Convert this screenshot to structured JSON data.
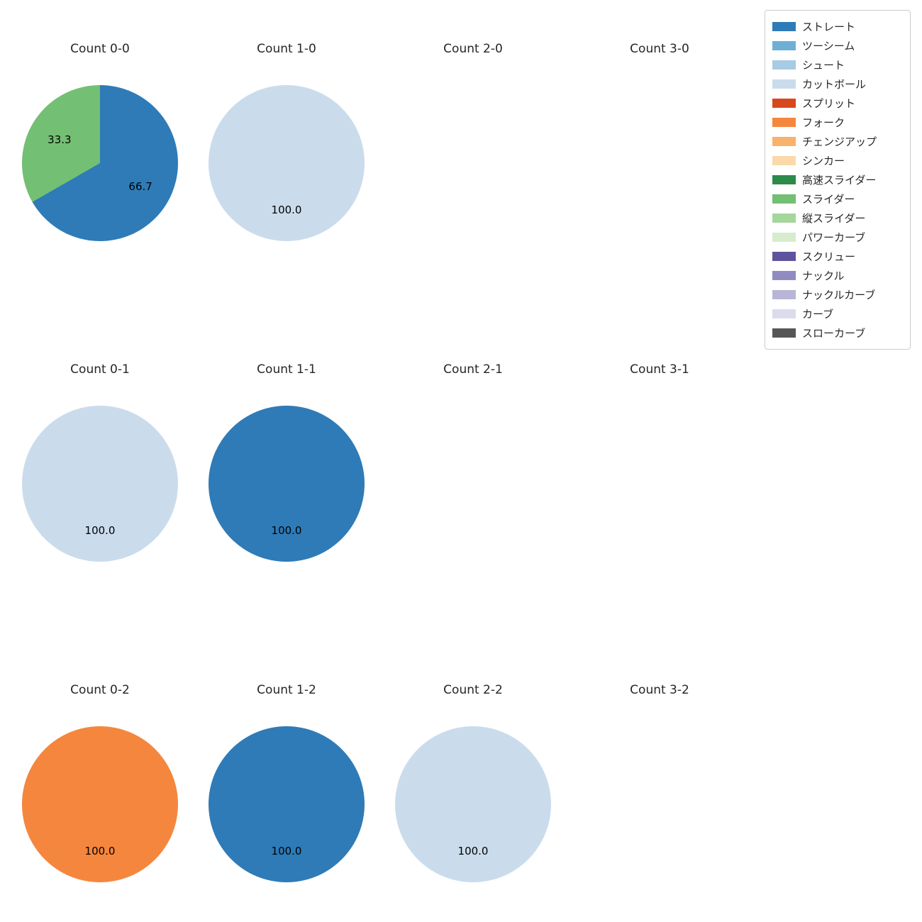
{
  "legend": {
    "items": [
      {
        "label": "ストレート",
        "color": "#2e7bb8"
      },
      {
        "label": "ツーシーム",
        "color": "#6fafd4"
      },
      {
        "label": "シュート",
        "color": "#a6cbe3"
      },
      {
        "label": "カットボール",
        "color": "#cadcec"
      },
      {
        "label": "スプリット",
        "color": "#d7481d"
      },
      {
        "label": "フォーク",
        "color": "#f5863d"
      },
      {
        "label": "チェンジアップ",
        "color": "#f9b26c"
      },
      {
        "label": "シンカー",
        "color": "#fbd9a8"
      },
      {
        "label": "高速スライダー",
        "color": "#2c8a4b"
      },
      {
        "label": "スライダー",
        "color": "#73bf73"
      },
      {
        "label": "縦スライダー",
        "color": "#a5d69c"
      },
      {
        "label": "パワーカーブ",
        "color": "#d5edcd"
      },
      {
        "label": "スクリュー",
        "color": "#5e549e"
      },
      {
        "label": "ナックル",
        "color": "#908bc1"
      },
      {
        "label": "ナックルカーブ",
        "color": "#b8b5d6"
      },
      {
        "label": "カーブ",
        "color": "#dcdbeb"
      },
      {
        "label": "スローカーブ",
        "color": "#565656"
      }
    ]
  },
  "chart_data": {
    "type": "pie",
    "grid": {
      "rows": 3,
      "cols": 4
    },
    "start_angle": "top",
    "direction": "clockwise",
    "value_label_format": "one_decimal",
    "charts": [
      {
        "title": "Count 0-0",
        "slices": [
          {
            "label": "ストレート",
            "value": 66.7,
            "color": "#2e7bb8"
          },
          {
            "label": "スライダー",
            "value": 33.3,
            "color": "#73bf73"
          }
        ]
      },
      {
        "title": "Count 1-0",
        "slices": [
          {
            "label": "カットボール",
            "value": 100.0,
            "color": "#cadcec"
          }
        ]
      },
      {
        "title": "Count 2-0",
        "slices": []
      },
      {
        "title": "Count 3-0",
        "slices": []
      },
      {
        "title": "Count 0-1",
        "slices": [
          {
            "label": "カットボール",
            "value": 100.0,
            "color": "#cadcec"
          }
        ]
      },
      {
        "title": "Count 1-1",
        "slices": [
          {
            "label": "ストレート",
            "value": 100.0,
            "color": "#2e7bb8"
          }
        ]
      },
      {
        "title": "Count 2-1",
        "slices": []
      },
      {
        "title": "Count 3-1",
        "slices": []
      },
      {
        "title": "Count 0-2",
        "slices": [
          {
            "label": "フォーク",
            "value": 100.0,
            "color": "#f5863d"
          }
        ]
      },
      {
        "title": "Count 1-2",
        "slices": [
          {
            "label": "ストレート",
            "value": 100.0,
            "color": "#2e7bb8"
          }
        ]
      },
      {
        "title": "Count 2-2",
        "slices": [
          {
            "label": "カットボール",
            "value": 100.0,
            "color": "#cadcec"
          }
        ]
      },
      {
        "title": "Count 3-2",
        "slices": []
      }
    ]
  }
}
